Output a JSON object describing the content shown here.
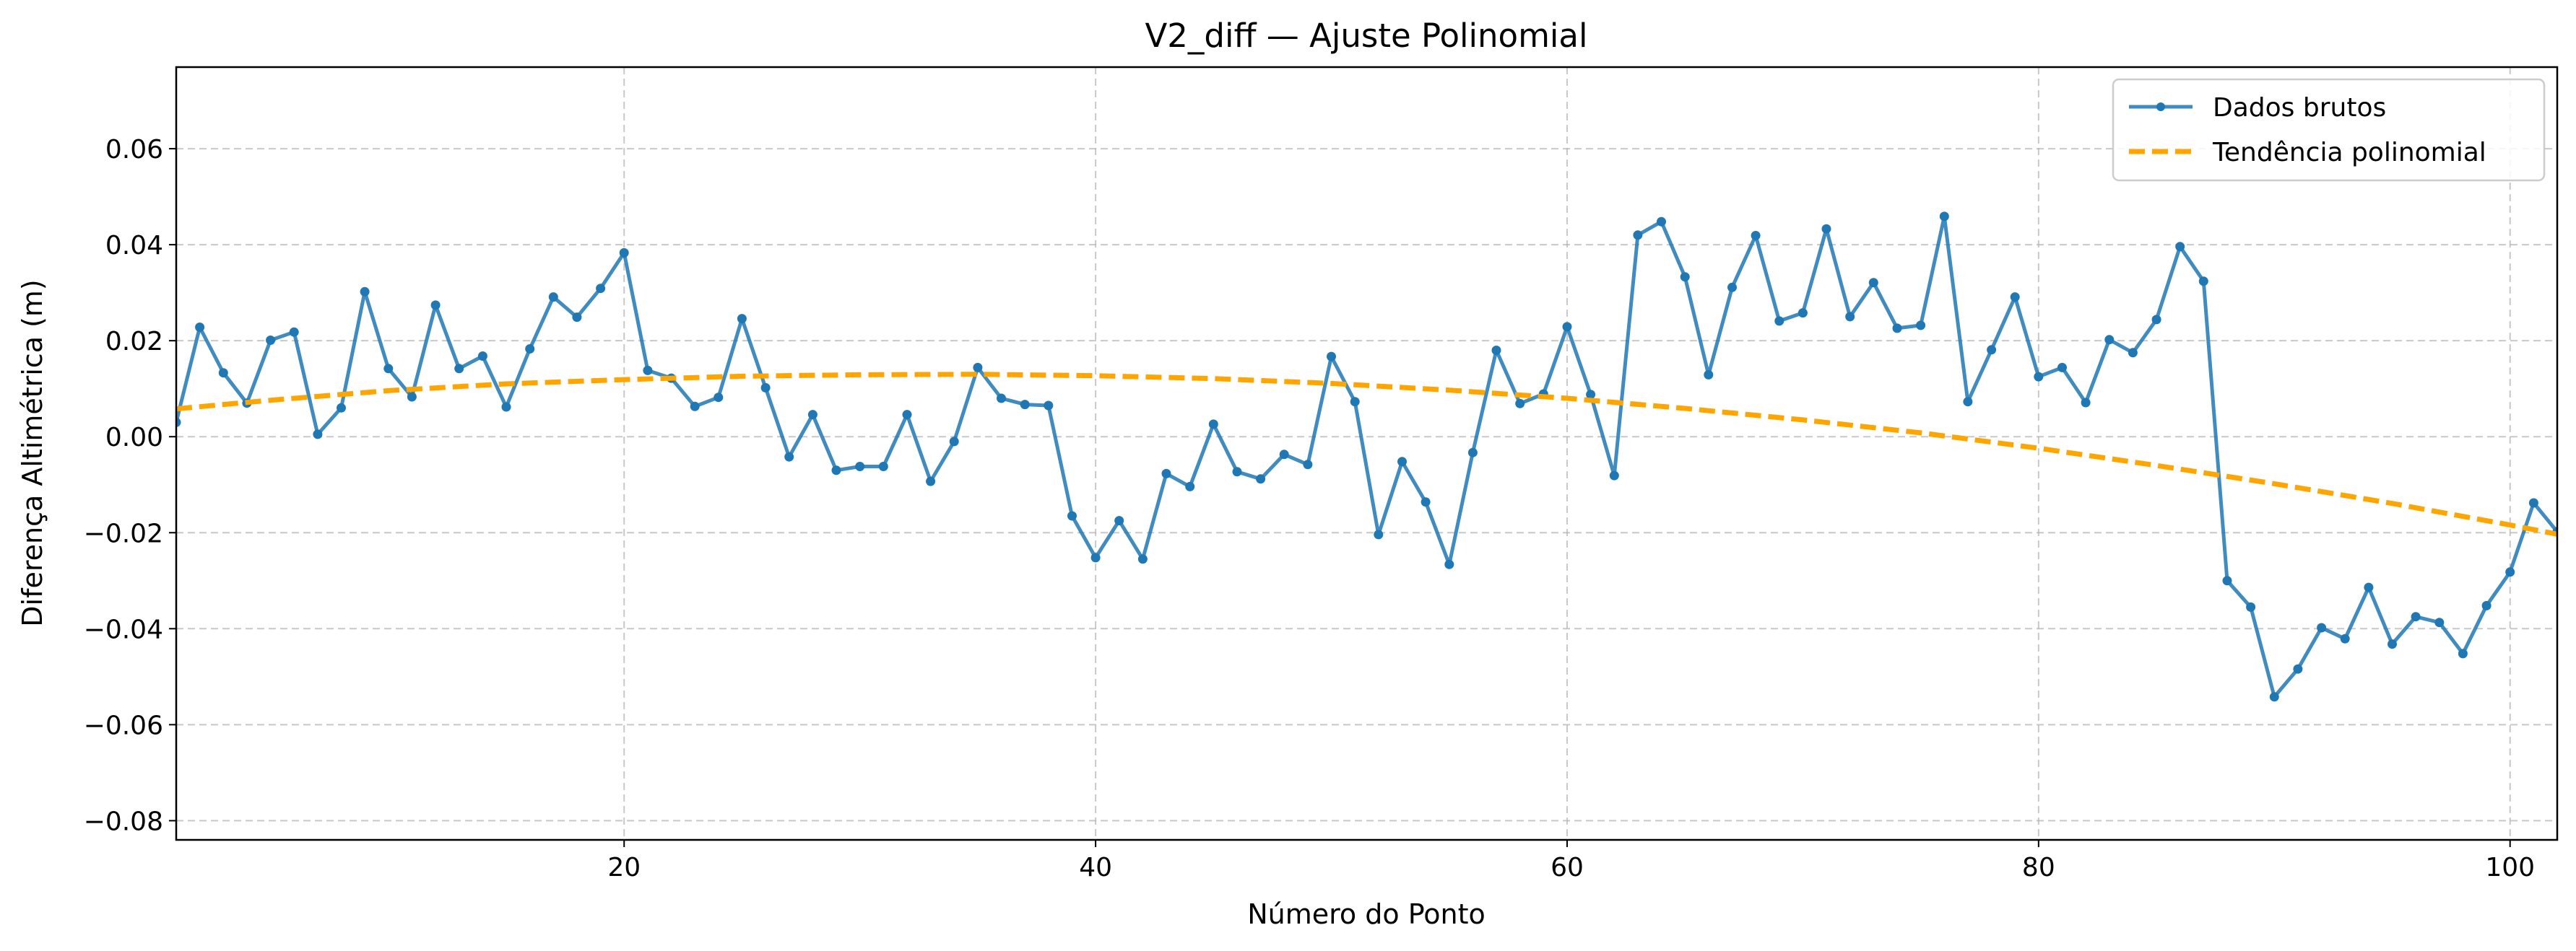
{
  "chart_data": {
    "type": "line",
    "title": "V2_diff — Ajuste Polinomial",
    "xlabel": "Número do Ponto",
    "ylabel": "Diferença Altimétrica (m)",
    "xlim": [
      1,
      102
    ],
    "ylim": [
      -0.084,
      0.077
    ],
    "xticks": [
      20,
      40,
      60,
      80,
      100
    ],
    "yticks": [
      -0.08,
      -0.06,
      -0.04,
      -0.02,
      0.0,
      0.02,
      0.04,
      0.06
    ],
    "ytick_labels": [
      "−0.08",
      "−0.06",
      "−0.04",
      "−0.02",
      "0.00",
      "0.02",
      "0.04",
      "0.06"
    ],
    "grid": true,
    "legend_position": "top-right",
    "series": [
      {
        "name": "Dados brutos",
        "style": "line-with-markers",
        "color": "#1f77b4",
        "x": [
          1,
          2,
          3,
          4,
          5,
          6,
          7,
          8,
          9,
          10,
          11,
          12,
          13,
          14,
          15,
          16,
          17,
          18,
          19,
          20,
          21,
          22,
          23,
          24,
          25,
          26,
          27,
          28,
          29,
          30,
          31,
          32,
          33,
          34,
          35,
          36,
          37,
          38,
          39,
          40,
          41,
          42,
          43,
          44,
          45,
          46,
          47,
          48,
          49,
          50,
          51,
          52,
          53,
          54,
          55,
          56,
          57,
          58,
          59,
          60,
          61,
          62,
          63,
          64,
          65,
          66,
          67,
          68,
          69,
          70,
          71,
          72,
          73,
          74,
          75,
          76,
          77,
          78,
          79,
          80,
          81,
          82,
          83,
          84,
          85,
          86,
          87,
          88,
          89,
          90,
          91,
          92,
          93,
          94,
          95,
          96,
          97,
          98,
          99,
          100,
          101,
          102
        ],
        "y": [
          0.003,
          0.0228,
          0.0133,
          0.007,
          0.0201,
          0.0218,
          0.0005,
          0.006,
          0.0302,
          0.0142,
          0.0083,
          0.0274,
          0.0142,
          0.0168,
          0.0062,
          0.0183,
          0.0291,
          0.0249,
          0.0309,
          0.0383,
          0.0138,
          0.0122,
          0.0063,
          0.0082,
          0.0246,
          0.0102,
          -0.0042,
          0.0046,
          -0.007,
          -0.0062,
          -0.0062,
          0.0046,
          -0.0093,
          -0.001,
          0.0144,
          0.008,
          0.0067,
          0.0065,
          -0.0165,
          -0.0252,
          -0.0175,
          -0.0255,
          -0.0077,
          -0.0104,
          0.0026,
          -0.0073,
          -0.0088,
          -0.0037,
          -0.0058,
          0.0167,
          0.0073,
          -0.0204,
          -0.0052,
          -0.0136,
          -0.0266,
          -0.0033,
          0.018,
          0.0069,
          0.0089,
          0.0229,
          0.0088,
          -0.0081,
          0.042,
          0.0448,
          0.0333,
          0.0129,
          0.0311,
          0.0419,
          0.0241,
          0.0258,
          0.0433,
          0.025,
          0.0321,
          0.0226,
          0.0232,
          0.0459,
          0.0073,
          0.0181,
          0.0291,
          0.0125,
          0.0144,
          0.0071,
          0.0202,
          0.0175,
          0.0244,
          0.0396,
          0.0324,
          -0.03,
          -0.0355,
          -0.0542,
          -0.0484,
          -0.0398,
          -0.0421,
          -0.0314,
          -0.0432,
          -0.0375,
          -0.0387,
          -0.0452,
          -0.0352,
          -0.0282,
          -0.0138,
          -0.0198
        ]
      },
      {
        "name": "Tendência polinomial",
        "style": "dashed",
        "color": "#ffa500",
        "x": [
          1,
          5,
          10,
          15,
          20,
          25,
          30,
          35,
          40,
          45,
          50,
          55,
          60,
          65,
          70,
          75,
          80,
          85,
          90,
          95,
          100,
          102
        ],
        "y": [
          0.0058,
          0.0076,
          0.0096,
          0.011,
          0.0119,
          0.0126,
          0.0129,
          0.013,
          0.0127,
          0.0121,
          0.0111,
          0.0097,
          0.008,
          0.0059,
          0.0035,
          0.0008,
          -0.0024,
          -0.006,
          -0.0098,
          -0.0139,
          -0.0184,
          -0.0203
        ]
      }
    ]
  }
}
